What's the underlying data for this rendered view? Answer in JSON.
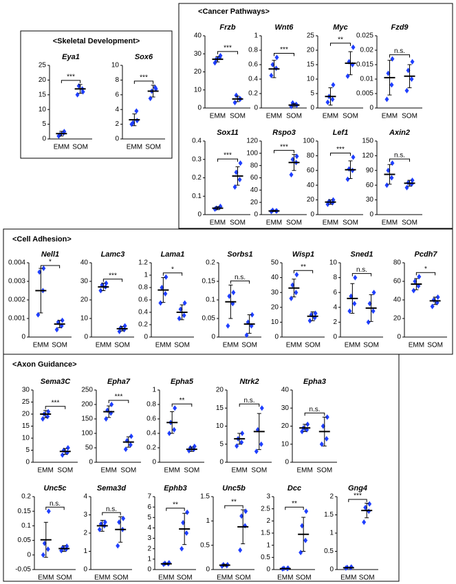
{
  "sections": [
    "<Skeletal Development>",
    "<Cancer Pathways>",
    "<Cell Adhesion>",
    "<Axon Guidance>"
  ],
  "chart_data": [
    {
      "type": "dot",
      "title": "Eya1",
      "categories": [
        "EMM",
        "SOM"
      ],
      "points": [
        [
          1,
          2,
          1.5,
          2.5
        ],
        [
          15,
          17,
          18,
          16
        ]
      ],
      "means": [
        1.8,
        17
      ],
      "errors": [
        0.8,
        1.5
      ],
      "significance": "***",
      "ylim": [
        0,
        25
      ],
      "yticks": [
        0,
        5,
        10,
        15,
        20,
        25
      ],
      "color": "#1f3fff"
    },
    {
      "type": "dot",
      "title": "Sox6",
      "categories": [
        "EMM",
        "SOM"
      ],
      "points": [
        [
          2,
          3.8,
          2.2,
          2.5
        ],
        [
          5.5,
          7,
          6.5,
          6.8
        ]
      ],
      "means": [
        2.6,
        6.5
      ],
      "errors": [
        0.8,
        0.8
      ],
      "significance": "***",
      "ylim": [
        0,
        10
      ],
      "yticks": [
        0,
        2,
        4,
        6,
        8,
        10
      ],
      "color": "#1f3fff"
    },
    {
      "type": "dot",
      "title": "Frzb",
      "categories": [
        "EMM",
        "SOM"
      ],
      "points": [
        [
          25,
          28,
          27,
          29
        ],
        [
          3,
          5,
          7,
          5
        ]
      ],
      "means": [
        27,
        5
      ],
      "errors": [
        1.5,
        1.5
      ],
      "significance": "***",
      "ylim": [
        0,
        40
      ],
      "yticks": [
        0,
        10,
        20,
        30,
        40
      ],
      "color": "#1f3fff"
    },
    {
      "type": "dot",
      "title": "Wnt6",
      "categories": [
        "EMM",
        "SOM"
      ],
      "points": [
        [
          0.45,
          0.55,
          0.6,
          0.7
        ],
        [
          0.02,
          0.05,
          0.07,
          0.04
        ]
      ],
      "means": [
        0.54,
        0.04
      ],
      "errors": [
        0.12,
        0.02
      ],
      "significance": "***",
      "ylim": [
        0,
        1
      ],
      "yticks": [
        0,
        0.2,
        0.4,
        0.6,
        0.8,
        1
      ],
      "color": "#1f3fff"
    },
    {
      "type": "dot",
      "title": "Myc",
      "categories": [
        "EMM",
        "SOM"
      ],
      "points": [
        [
          2,
          3,
          4,
          8
        ],
        [
          11,
          15,
          16,
          21
        ]
      ],
      "means": [
        4,
        15.5
      ],
      "errors": [
        3,
        4
      ],
      "significance": "**",
      "ylim": [
        0,
        25
      ],
      "yticks": [
        0,
        5,
        10,
        15,
        20,
        25
      ],
      "color": "#1f3fff"
    },
    {
      "type": "dot",
      "title": "Fzd9",
      "categories": [
        "EMM",
        "SOM"
      ],
      "points": [
        [
          0.003,
          0.008,
          0.012,
          0.017
        ],
        [
          0.006,
          0.01,
          0.013,
          0.016
        ]
      ],
      "means": [
        0.0105,
        0.011
      ],
      "errors": [
        0.006,
        0.004
      ],
      "significance": "n.s.",
      "ylim": [
        0,
        0.025
      ],
      "yticks": [
        0,
        0.005,
        0.01,
        0.015,
        0.02,
        0.025
      ],
      "color": "#1f3fff"
    },
    {
      "type": "dot",
      "title": "Sox11",
      "categories": [
        "EMM",
        "SOM"
      ],
      "points": [
        [
          0.03,
          0.04,
          0.035,
          0.045
        ],
        [
          0.15,
          0.19,
          0.23,
          0.28
        ]
      ],
      "means": [
        0.035,
        0.21
      ],
      "errors": [
        0.008,
        0.05
      ],
      "significance": "***",
      "ylim": [
        0,
        0.4
      ],
      "yticks": [
        0,
        0.1,
        0.2,
        0.3,
        0.4
      ],
      "color": "#1f3fff"
    },
    {
      "type": "dot",
      "title": "Rspo3",
      "categories": [
        "EMM",
        "SOM"
      ],
      "points": [
        [
          5,
          6,
          7,
          6
        ],
        [
          65,
          85,
          90,
          95
        ]
      ],
      "means": [
        6,
        85
      ],
      "errors": [
        1,
        13
      ],
      "significance": "***",
      "ylim": [
        0,
        120
      ],
      "yticks": [
        0,
        20,
        40,
        60,
        80,
        100,
        120
      ],
      "color": "#1f3fff"
    },
    {
      "type": "dot",
      "title": "Lef1",
      "categories": [
        "EMM",
        "SOM"
      ],
      "points": [
        [
          14,
          16,
          18,
          20
        ],
        [
          48,
          60,
          62,
          78
        ]
      ],
      "means": [
        17,
        61
      ],
      "errors": [
        3,
        12
      ],
      "significance": "***",
      "ylim": [
        0,
        100
      ],
      "yticks": [
        0,
        20,
        40,
        60,
        80,
        100
      ],
      "color": "#1f3fff"
    },
    {
      "type": "dot",
      "title": "Axin2",
      "categories": [
        "EMM",
        "SOM"
      ],
      "points": [
        [
          60,
          75,
          90,
          105
        ],
        [
          55,
          62,
          65,
          70
        ]
      ],
      "means": [
        82,
        64
      ],
      "errors": [
        20,
        6
      ],
      "significance": "n.s.",
      "ylim": [
        0,
        150
      ],
      "yticks": [
        0,
        30,
        60,
        90,
        120,
        150
      ],
      "color": "#1f3fff"
    },
    {
      "type": "dot",
      "title": "Nell1",
      "categories": [
        "EMM",
        "SOM"
      ],
      "points": [
        [
          0.0012,
          0.0025,
          0.0035,
          0.0037
        ],
        [
          0.0004,
          0.0006,
          0.0008,
          0.0009
        ]
      ],
      "means": [
        0.0025,
        0.0007
      ],
      "errors": [
        0.0012,
        0.0002
      ],
      "significance": "*",
      "ylim": [
        0,
        0.004
      ],
      "yticks": [
        0,
        0.001,
        0.002,
        0.003,
        0.004
      ],
      "color": "#1f3fff"
    },
    {
      "type": "dot",
      "title": "Lamc3",
      "categories": [
        "EMM",
        "SOM"
      ],
      "points": [
        [
          25,
          27,
          28,
          29
        ],
        [
          3,
          4,
          5,
          6
        ]
      ],
      "means": [
        27,
        4.5
      ],
      "errors": [
        2,
        1.2
      ],
      "significance": "***",
      "ylim": [
        0,
        40
      ],
      "yticks": [
        0,
        10,
        20,
        30,
        40
      ],
      "color": "#1f3fff"
    },
    {
      "type": "dot",
      "title": "Lama1",
      "categories": [
        "EMM",
        "SOM"
      ],
      "points": [
        [
          0.55,
          0.7,
          0.8,
          0.97
        ],
        [
          0.3,
          0.35,
          0.45,
          0.55
        ]
      ],
      "means": [
        0.76,
        0.4
      ],
      "errors": [
        0.2,
        0.12
      ],
      "significance": "*",
      "ylim": [
        0,
        1.2
      ],
      "yticks": [
        0,
        0.2,
        0.4,
        0.6,
        0.8,
        1,
        1.2
      ],
      "color": "#1f3fff"
    },
    {
      "type": "dot",
      "title": "Sorbs1",
      "categories": [
        "EMM",
        "SOM"
      ],
      "points": [
        [
          0.03,
          0.09,
          0.11,
          0.12
        ],
        [
          0.005,
          0.03,
          0.04,
          0.06
        ]
      ],
      "means": [
        0.095,
        0.035
      ],
      "errors": [
        0.045,
        0.025
      ],
      "significance": "n.s.",
      "ylim": [
        0,
        0.2
      ],
      "yticks": [
        0,
        0.05,
        0.1,
        0.15,
        0.2
      ],
      "color": "#1f3fff"
    },
    {
      "type": "dot",
      "title": "Wisp1",
      "categories": [
        "EMM",
        "SOM"
      ],
      "points": [
        [
          26,
          30,
          35,
          42
        ],
        [
          11,
          13,
          15,
          16
        ]
      ],
      "means": [
        33,
        14
      ],
      "errors": [
        6,
        3
      ],
      "significance": "**",
      "ylim": [
        0,
        50
      ],
      "yticks": [
        0,
        10,
        20,
        30,
        40,
        50
      ],
      "color": "#1f3fff"
    },
    {
      "type": "dot",
      "title": "Sned1",
      "categories": [
        "EMM",
        "SOM"
      ],
      "points": [
        [
          3.5,
          4.5,
          5.5,
          8
        ],
        [
          2,
          3.5,
          4.5,
          6
        ]
      ],
      "means": [
        5.2,
        3.9
      ],
      "errors": [
        2,
        1.8
      ],
      "significance": "n.s.",
      "ylim": [
        0,
        10
      ],
      "yticks": [
        0,
        2,
        4,
        6,
        8,
        10
      ],
      "color": "#1f3fff"
    },
    {
      "type": "dot",
      "title": "Pcdh7",
      "categories": [
        "EMM",
        "SOM"
      ],
      "points": [
        [
          50,
          55,
          60,
          65
        ],
        [
          33,
          37,
          40,
          43
        ]
      ],
      "means": [
        57,
        39
      ],
      "errors": [
        6,
        4
      ],
      "significance": "*",
      "ylim": [
        0,
        80
      ],
      "yticks": [
        0,
        20,
        40,
        60,
        80
      ],
      "color": "#1f3fff"
    },
    {
      "type": "dot",
      "title": "Sema3C",
      "categories": [
        "EMM",
        "SOM"
      ],
      "points": [
        [
          18,
          19,
          20,
          21
        ],
        [
          3,
          4,
          5,
          6
        ]
      ],
      "means": [
        20,
        4.5
      ],
      "errors": [
        1.5,
        1.2
      ],
      "significance": "***",
      "ylim": [
        0,
        30
      ],
      "yticks": [
        0,
        5,
        10,
        15,
        20,
        25,
        30
      ],
      "color": "#1f3fff"
    },
    {
      "type": "dot",
      "title": "Epha7",
      "categories": [
        "EMM",
        "SOM"
      ],
      "points": [
        [
          150,
          170,
          180,
          200
        ],
        [
          45,
          60,
          75,
          90
        ]
      ],
      "means": [
        175,
        70
      ],
      "errors": [
        20,
        18
      ],
      "significance": "***",
      "ylim": [
        0,
        250
      ],
      "yticks": [
        0,
        50,
        100,
        150,
        200,
        250
      ],
      "color": "#1f3fff"
    },
    {
      "type": "dot",
      "title": "Epha5",
      "categories": [
        "EMM",
        "SOM"
      ],
      "points": [
        [
          0.4,
          0.45,
          0.55,
          0.75
        ],
        [
          0.16,
          0.18,
          0.2,
          0.22
        ]
      ],
      "means": [
        0.55,
        0.18
      ],
      "errors": [
        0.15,
        0.03
      ],
      "significance": "**",
      "ylim": [
        0,
        1
      ],
      "yticks": [
        0,
        0.2,
        0.4,
        0.6,
        0.8,
        1
      ],
      "color": "#1f3fff"
    },
    {
      "type": "dot",
      "title": "Ntrk2",
      "categories": [
        "EMM",
        "SOM"
      ],
      "points": [
        [
          4.5,
          5.5,
          6.5,
          8
        ],
        [
          3,
          5,
          9,
          15
        ]
      ],
      "means": [
        6.5,
        8.5
      ],
      "errors": [
        1.5,
        5
      ],
      "significance": "n.s.",
      "ylim": [
        0,
        20
      ],
      "yticks": [
        0,
        5,
        10,
        15,
        20
      ],
      "color": "#1f3fff"
    },
    {
      "type": "dot",
      "title": "Epha3",
      "categories": [
        "EMM",
        "SOM"
      ],
      "points": [
        [
          17,
          18,
          19,
          21
        ],
        [
          10,
          13,
          20,
          25
        ]
      ],
      "means": [
        19,
        17
      ],
      "errors": [
        2,
        8
      ],
      "significance": "n.s.",
      "ylim": [
        0,
        40
      ],
      "yticks": [
        0,
        10,
        20,
        30,
        40
      ],
      "color": "#1f3fff"
    },
    {
      "type": "dot",
      "title": "Unc5c",
      "categories": [
        "EMM",
        "SOM"
      ],
      "points": [
        [
          0,
          0.02,
          0.04,
          0.15
        ],
        [
          0.015,
          0.02,
          0.025,
          0.03
        ]
      ],
      "means": [
        0.052,
        0.022
      ],
      "errors": [
        0.06,
        0.01
      ],
      "significance": "n.s.",
      "ylim": [
        -0.05,
        0.2
      ],
      "yticks": [
        -0.05,
        0,
        0.05,
        0.1,
        0.15,
        0.2
      ],
      "color": "#1f3fff"
    },
    {
      "type": "dot",
      "title": "Sema3d",
      "categories": [
        "EMM",
        "SOM"
      ],
      "points": [
        [
          2.2,
          2.4,
          2.5,
          2.6
        ],
        [
          1.3,
          2.2,
          2.6,
          2.8
        ]
      ],
      "means": [
        2.4,
        2.2
      ],
      "errors": [
        0.3,
        0.7
      ],
      "significance": "n.s.",
      "ylim": [
        0,
        4
      ],
      "yticks": [
        0,
        1,
        2,
        3,
        4
      ],
      "color": "#1f3fff"
    },
    {
      "type": "dot",
      "title": "Ephb3",
      "categories": [
        "EMM",
        "SOM"
      ],
      "points": [
        [
          0.5,
          0.55,
          0.6,
          0.65
        ],
        [
          2,
          3.5,
          4.5,
          5.5
        ]
      ],
      "means": [
        0.55,
        3.9
      ],
      "errors": [
        0.07,
        1.5
      ],
      "significance": "**",
      "ylim": [
        0,
        7
      ],
      "yticks": [
        0,
        1,
        2,
        3,
        4,
        5,
        6,
        7
      ],
      "color": "#1f3fff"
    },
    {
      "type": "dot",
      "title": "Unc5b",
      "categories": [
        "EMM",
        "SOM"
      ],
      "points": [
        [
          0.07,
          0.08,
          0.1,
          0.1
        ],
        [
          0.4,
          0.9,
          1.1,
          1.2
        ]
      ],
      "means": [
        0.09,
        0.88
      ],
      "errors": [
        0.02,
        0.35
      ],
      "significance": "**",
      "ylim": [
        0,
        1.5
      ],
      "yticks": [
        0,
        0.5,
        1,
        1.5
      ],
      "color": "#1f3fff"
    },
    {
      "type": "dot",
      "title": "Dcc",
      "categories": [
        "EMM",
        "SOM"
      ],
      "points": [
        [
          0.03,
          0.04,
          0.05,
          0.06
        ],
        [
          0.7,
          1.2,
          1.8,
          2.4
        ]
      ],
      "means": [
        0.04,
        1.45
      ],
      "errors": [
        0.01,
        0.7
      ],
      "significance": "**",
      "ylim": [
        0,
        3
      ],
      "yticks": [
        0,
        0.5,
        1,
        1.5,
        2,
        2.5,
        3
      ],
      "color": "#1f3fff"
    },
    {
      "type": "dot",
      "title": "Gng4",
      "categories": [
        "EMM",
        "SOM"
      ],
      "points": [
        [
          0.04,
          0.05,
          0.06,
          0.07
        ],
        [
          1.3,
          1.6,
          1.7,
          1.8
        ]
      ],
      "means": [
        0.05,
        1.62
      ],
      "errors": [
        0.01,
        0.2
      ],
      "significance": "***",
      "ylim": [
        0,
        2
      ],
      "yticks": [
        0,
        0.5,
        1,
        1.5,
        2
      ],
      "color": "#1f3fff"
    }
  ]
}
